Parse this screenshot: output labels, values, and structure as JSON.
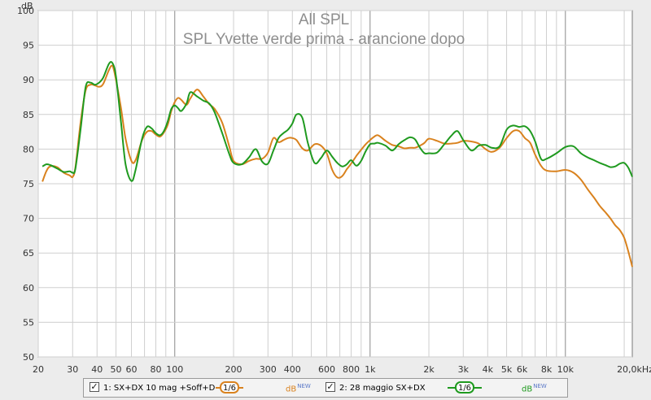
{
  "chart_data": {
    "type": "line",
    "title": "All SPL",
    "subtitle": "SPL Yvette verde prima - arancione dopo",
    "ylabel": "dB",
    "xscale": "log",
    "xlim": [
      20,
      22000
    ],
    "ylim": [
      50,
      100
    ],
    "yticks": [
      50,
      55,
      60,
      65,
      70,
      75,
      80,
      85,
      90,
      95,
      100
    ],
    "xticks": [
      {
        "v": 20,
        "label": "20"
      },
      {
        "v": 30,
        "label": "30"
      },
      {
        "v": 40,
        "label": "40"
      },
      {
        "v": 50,
        "label": "50"
      },
      {
        "v": 60,
        "label": "60"
      },
      {
        "v": 80,
        "label": "80"
      },
      {
        "v": 100,
        "label": "100"
      },
      {
        "v": 200,
        "label": "200"
      },
      {
        "v": 300,
        "label": "300"
      },
      {
        "v": 400,
        "label": "400"
      },
      {
        "v": 600,
        "label": "600"
      },
      {
        "v": 800,
        "label": "800"
      },
      {
        "v": 1000,
        "label": "1k"
      },
      {
        "v": 2000,
        "label": "2k"
      },
      {
        "v": 3000,
        "label": "3k"
      },
      {
        "v": 4000,
        "label": "4k"
      },
      {
        "v": 5000,
        "label": "5k"
      },
      {
        "v": 6000,
        "label": "6k"
      },
      {
        "v": 8000,
        "label": "8k"
      },
      {
        "v": 10000,
        "label": "10k"
      },
      {
        "v": 20000,
        "label": "20,0kHz"
      }
    ],
    "grid": true,
    "legend_position": "bottom",
    "series": [
      {
        "name": "1: SX+DX 10 mag +Soff+D",
        "smoothing": "1/6",
        "unit": "dB",
        "color": "#d9821e",
        "x": [
          21,
          22,
          23,
          25,
          27,
          29,
          30,
          31,
          33,
          35,
          37,
          39,
          41,
          43,
          46,
          48,
          50,
          53,
          56,
          60,
          63,
          68,
          72,
          76,
          80,
          84,
          88,
          92,
          96,
          100,
          104,
          108,
          115,
          120,
          130,
          140,
          150,
          160,
          175,
          190,
          200,
          220,
          240,
          260,
          280,
          300,
          320,
          340,
          360,
          380,
          400,
          420,
          450,
          480,
          520,
          560,
          600,
          640,
          680,
          720,
          760,
          800,
          850,
          900,
          950,
          1000,
          1050,
          1100,
          1200,
          1300,
          1400,
          1500,
          1600,
          1700,
          1800,
          1900,
          2000,
          2200,
          2400,
          2600,
          2800,
          3000,
          3300,
          3600,
          3900,
          4200,
          4600,
          5000,
          5400,
          5800,
          6200,
          6600,
          7000,
          7500,
          8000,
          9000,
          10000,
          11000,
          12000,
          13000,
          14000,
          15000,
          16000,
          17000,
          18000,
          19000,
          20000,
          21000,
          22000
        ],
        "y": [
          75.3,
          76.8,
          77.5,
          77.4,
          76.6,
          76.2,
          76.0,
          77.4,
          84.0,
          88.5,
          89.3,
          89.2,
          89.0,
          89.4,
          91.4,
          92.0,
          90.0,
          86.0,
          81.5,
          78.3,
          78.4,
          81.3,
          82.5,
          82.6,
          82.1,
          81.8,
          82.4,
          83.5,
          85.5,
          86.8,
          87.4,
          87.1,
          86.4,
          87.3,
          88.6,
          87.6,
          86.5,
          85.8,
          83.8,
          80.4,
          78.3,
          77.8,
          78.3,
          78.6,
          78.6,
          79.5,
          81.6,
          81.0,
          81.3,
          81.6,
          81.6,
          81.3,
          80.1,
          79.8,
          80.7,
          80.5,
          79.4,
          77.0,
          75.9,
          76.1,
          77.1,
          77.9,
          79.0,
          79.9,
          80.7,
          81.3,
          81.8,
          82.0,
          81.2,
          80.6,
          80.4,
          80.1,
          80.2,
          80.2,
          80.5,
          80.9,
          81.5,
          81.2,
          80.8,
          80.8,
          80.9,
          81.2,
          81.1,
          80.8,
          80.0,
          79.6,
          80.2,
          81.6,
          82.6,
          82.6,
          81.6,
          80.9,
          79.2,
          77.6,
          76.9,
          76.8,
          77.0,
          76.6,
          75.6,
          74.2,
          73.0,
          71.8,
          70.9,
          70.0,
          69.0,
          68.3,
          67.2,
          65.2,
          63.0
        ]
      },
      {
        "name": "2: 28 maggio SX+DX",
        "smoothing": "1/6",
        "unit": "dB",
        "color": "#1f9a1f",
        "x": [
          21,
          22,
          23,
          25,
          27,
          29,
          30,
          31,
          33,
          35,
          37,
          39,
          41,
          43,
          46,
          48,
          50,
          53,
          56,
          60,
          63,
          68,
          72,
          76,
          80,
          84,
          88,
          92,
          96,
          100,
          104,
          108,
          115,
          120,
          130,
          140,
          150,
          160,
          175,
          190,
          200,
          220,
          240,
          260,
          280,
          300,
          320,
          340,
          360,
          380,
          400,
          420,
          450,
          480,
          520,
          560,
          600,
          640,
          680,
          720,
          760,
          800,
          850,
          900,
          950,
          1000,
          1050,
          1100,
          1200,
          1300,
          1400,
          1500,
          1600,
          1700,
          1800,
          1900,
          2000,
          2200,
          2400,
          2600,
          2800,
          3000,
          3300,
          3600,
          3900,
          4200,
          4600,
          5000,
          5400,
          5800,
          6200,
          6600,
          7000,
          7500,
          8000,
          9000,
          10000,
          11000,
          12000,
          13000,
          14000,
          15000,
          16000,
          17000,
          18000,
          19000,
          20000,
          21000,
          22000
        ],
        "y": [
          77.5,
          77.8,
          77.7,
          77.2,
          76.7,
          76.8,
          76.6,
          77.2,
          83.0,
          89.0,
          89.6,
          89.3,
          89.6,
          90.3,
          92.3,
          92.4,
          90.5,
          84.0,
          77.8,
          75.4,
          77.0,
          81.5,
          83.2,
          83.0,
          82.3,
          82.0,
          82.6,
          84.0,
          85.8,
          86.3,
          85.9,
          85.5,
          86.6,
          88.2,
          87.6,
          87.0,
          86.6,
          85.3,
          82.3,
          79.3,
          78.0,
          77.8,
          78.8,
          80.0,
          78.2,
          77.9,
          79.8,
          81.6,
          82.3,
          82.8,
          83.7,
          85.0,
          84.5,
          80.9,
          78.0,
          78.7,
          79.8,
          78.9,
          78.0,
          77.5,
          77.8,
          78.4,
          77.6,
          78.3,
          79.7,
          80.7,
          80.8,
          80.9,
          80.5,
          79.8,
          80.7,
          81.3,
          81.7,
          81.4,
          80.2,
          79.4,
          79.4,
          79.5,
          80.7,
          81.9,
          82.6,
          81.3,
          79.8,
          80.5,
          80.6,
          80.2,
          80.4,
          82.8,
          83.4,
          83.2,
          83.3,
          82.6,
          81.1,
          78.6,
          78.6,
          79.4,
          80.3,
          80.4,
          79.4,
          78.8,
          78.4,
          78.0,
          77.7,
          77.4,
          77.5,
          77.9,
          78.0,
          77.3,
          76.0
        ]
      }
    ]
  },
  "legend": {
    "items": [
      {
        "checked": "✓",
        "label": "1: SX+DX 10 mag +Soff+D",
        "smoothing": "1/6",
        "unit": "dB",
        "unit_suffix": "NEW",
        "color": "#d9821e"
      },
      {
        "checked": "✓",
        "label": "2: 28 maggio SX+DX",
        "smoothing": "1/6",
        "unit": "dB",
        "unit_suffix": "NEW",
        "color": "#1f9a1f"
      }
    ]
  }
}
